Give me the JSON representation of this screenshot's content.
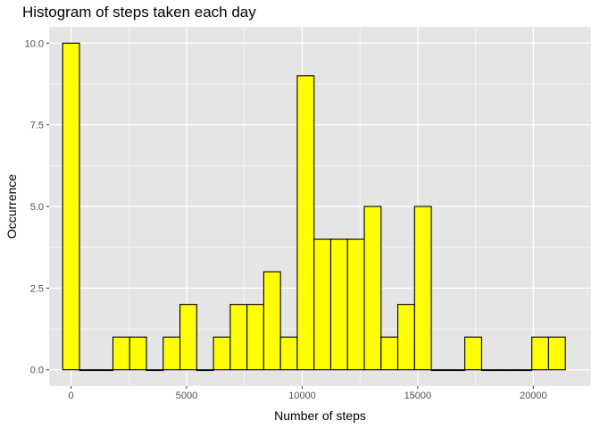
{
  "chart_data": {
    "type": "bar",
    "title": "Histogram of steps taken each day",
    "xlabel": "Number of steps",
    "ylabel": "Occurrence",
    "bin_width": 725,
    "bin_centers": [
      0,
      725,
      1450,
      2175,
      2900,
      3625,
      4350,
      5075,
      5800,
      6525,
      7250,
      7975,
      8700,
      9425,
      10150,
      10875,
      11600,
      12325,
      13050,
      13775,
      14500,
      15225,
      15950,
      16675,
      17400,
      18125,
      18850,
      19575,
      20300,
      21025
    ],
    "values": [
      10,
      0,
      0,
      1,
      1,
      0,
      1,
      2,
      0,
      1,
      2,
      2,
      3,
      1,
      9,
      4,
      4,
      4,
      5,
      1,
      2,
      5,
      0,
      0,
      1,
      0,
      0,
      0,
      1,
      1
    ],
    "xlim": [
      -950,
      22500
    ],
    "ylim": [
      -0.5,
      10.5
    ],
    "x_ticks": [
      0,
      5000,
      10000,
      15000,
      20000
    ],
    "x_tick_labels": [
      "0",
      "5000",
      "10000",
      "15000",
      "20000"
    ],
    "y_ticks": [
      0,
      2.5,
      5,
      7.5,
      10
    ],
    "y_tick_labels": [
      "0.0",
      "2.5",
      "5.0",
      "7.5",
      "10.0"
    ],
    "grid": true,
    "bar_fill": "#ffff00",
    "bar_stroke": "#000000",
    "panel_background": "#e5e5e5",
    "grid_color": "#ffffff"
  }
}
